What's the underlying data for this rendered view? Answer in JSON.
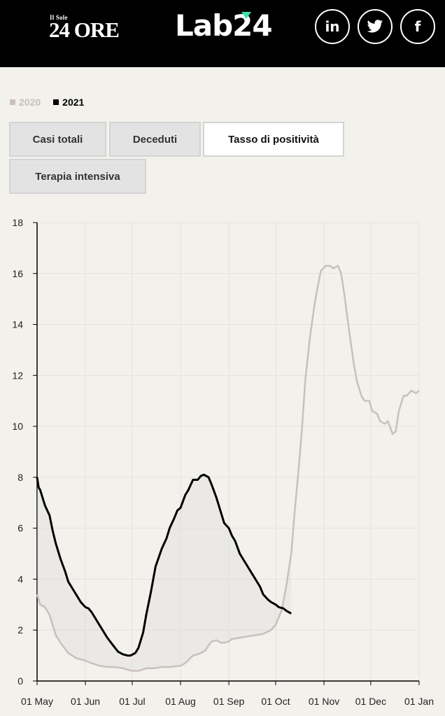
{
  "header": {
    "brand_small": "Il Sole",
    "brand_big": "24 ORE",
    "lab_logo": "Lab24",
    "social": [
      {
        "name": "linkedin-icon",
        "label": "in"
      },
      {
        "name": "twitter-icon",
        "label": "🐦"
      },
      {
        "name": "facebook-icon",
        "label": "f"
      }
    ]
  },
  "legend": [
    {
      "label": "2020",
      "color": "#c9bfc0"
    },
    {
      "label": "2021",
      "color": "#000000"
    }
  ],
  "tabs": [
    {
      "label": "Casi totali",
      "active": false
    },
    {
      "label": "Deceduti",
      "active": false
    },
    {
      "label": "Tasso di positività",
      "active": true
    },
    {
      "label": "Terapia intensiva",
      "active": false
    }
  ],
  "chart_data": {
    "type": "line",
    "title": "",
    "xlabel": "",
    "ylabel": "",
    "ylim": [
      0,
      18
    ],
    "yticks": [
      0,
      2,
      4,
      6,
      8,
      10,
      12,
      14,
      16,
      18
    ],
    "xticks": [
      {
        "label": "01 May",
        "day": 0
      },
      {
        "label": "01 Jun",
        "day": 31
      },
      {
        "label": "01 Jul",
        "day": 61
      },
      {
        "label": "01 Aug",
        "day": 92
      },
      {
        "label": "01 Sep",
        "day": 123
      },
      {
        "label": "01 Oct",
        "day": 153
      },
      {
        "label": "01 Nov",
        "day": 184
      },
      {
        "label": "01 Dec",
        "day": 214
      },
      {
        "label": "01 Jan",
        "day": 245
      }
    ],
    "xlim": [
      0,
      245
    ],
    "grid": true,
    "series": [
      {
        "name": "2020",
        "color": "#c9bfc0",
        "x": [
          0,
          2,
          5,
          8,
          12,
          15,
          20,
          25,
          31,
          35,
          40,
          45,
          50,
          55,
          61,
          65,
          70,
          75,
          80,
          85,
          92,
          95,
          100,
          103,
          105,
          108,
          110,
          112,
          115,
          118,
          120,
          123,
          125,
          130,
          135,
          140,
          145,
          150,
          153,
          157,
          160,
          163,
          165,
          168,
          170,
          172,
          175,
          178,
          180,
          182,
          185,
          188,
          190,
          193,
          195,
          197,
          200,
          203,
          205,
          208,
          210,
          213,
          215,
          218,
          220,
          223,
          225,
          228,
          230,
          232,
          235,
          237,
          240,
          243,
          245
        ],
        "y": [
          3.4,
          3.0,
          2.9,
          2.6,
          1.8,
          1.5,
          1.1,
          0.9,
          0.8,
          0.7,
          0.6,
          0.55,
          0.55,
          0.5,
          0.4,
          0.4,
          0.5,
          0.5,
          0.55,
          0.55,
          0.6,
          0.7,
          1.0,
          1.05,
          1.1,
          1.2,
          1.4,
          1.55,
          1.6,
          1.5,
          1.5,
          1.55,
          1.65,
          1.7,
          1.75,
          1.8,
          1.85,
          2.0,
          2.2,
          2.8,
          3.8,
          5.0,
          6.5,
          8.5,
          10.0,
          11.8,
          13.5,
          14.8,
          15.5,
          16.1,
          16.3,
          16.3,
          16.2,
          16.3,
          16.0,
          15.2,
          13.8,
          12.5,
          11.8,
          11.2,
          11.0,
          11.0,
          10.6,
          10.5,
          10.2,
          10.1,
          10.2,
          9.7,
          9.8,
          10.6,
          11.2,
          11.2,
          11.4,
          11.3,
          11.4
        ]
      },
      {
        "name": "2021",
        "color": "#000000",
        "x": [
          0,
          1,
          2,
          3,
          5,
          8,
          10,
          12,
          15,
          18,
          20,
          24,
          28,
          31,
          33,
          35,
          38,
          40,
          45,
          50,
          52,
          55,
          58,
          60,
          63,
          65,
          68,
          70,
          73,
          76,
          80,
          83,
          85,
          88,
          90,
          92,
          95,
          97,
          100,
          103,
          105,
          107,
          110,
          112,
          115,
          117,
          120,
          123,
          125,
          127,
          130,
          133,
          135,
          138,
          140,
          143,
          145,
          148,
          150,
          153,
          155,
          158,
          160,
          163
        ],
        "y": [
          8.0,
          7.6,
          7.5,
          7.3,
          6.9,
          6.5,
          5.9,
          5.4,
          4.8,
          4.3,
          3.9,
          3.5,
          3.1,
          2.9,
          2.85,
          2.7,
          2.4,
          2.2,
          1.7,
          1.3,
          1.15,
          1.05,
          1.0,
          1.0,
          1.1,
          1.3,
          1.9,
          2.6,
          3.5,
          4.5,
          5.2,
          5.6,
          6.0,
          6.4,
          6.7,
          6.8,
          7.3,
          7.5,
          7.9,
          7.9,
          8.05,
          8.1,
          8.0,
          7.7,
          7.2,
          6.8,
          6.2,
          6.0,
          5.7,
          5.5,
          5.0,
          4.7,
          4.5,
          4.2,
          4.0,
          3.7,
          3.4,
          3.2,
          3.1,
          3.0,
          2.9,
          2.85,
          2.75,
          2.65
        ]
      }
    ]
  }
}
